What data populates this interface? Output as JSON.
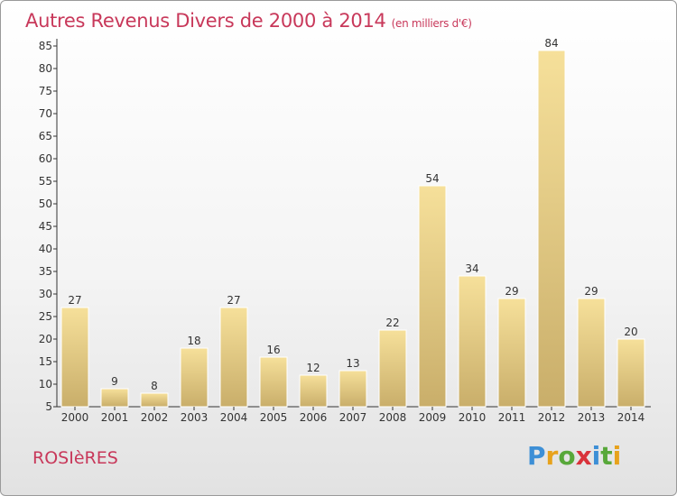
{
  "title": "Autres Revenus Divers de 2000 à 2014",
  "title_unit": "(en milliers d'€)",
  "commune": "ROSIèRES",
  "logo": {
    "letters": [
      "P",
      "r",
      "o",
      "x",
      "i",
      "t",
      "i"
    ],
    "colors": [
      "#3d8fd6",
      "#e7a21c",
      "#58a83a",
      "#d9323a",
      "#3d8fd6",
      "#58a83a",
      "#e7a21c"
    ]
  },
  "colors": {
    "accent": "#c8385a",
    "bar_light": "#f6e09a",
    "bar_dark": "#c9ae6a"
  },
  "chart_data": {
    "type": "bar",
    "title": "Autres Revenus Divers de 2000 à 2014",
    "categories": [
      "2000",
      "2001",
      "2002",
      "2003",
      "2004",
      "2005",
      "2006",
      "2007",
      "2008",
      "2009",
      "2010",
      "2011",
      "2012",
      "2013",
      "2014"
    ],
    "values": [
      27,
      9,
      8,
      18,
      27,
      16,
      12,
      13,
      22,
      54,
      34,
      29,
      84,
      29,
      20
    ],
    "ylim": [
      5,
      85
    ],
    "yticks": [
      5,
      10,
      15,
      20,
      25,
      30,
      35,
      40,
      45,
      50,
      55,
      60,
      65,
      70,
      75,
      80,
      85
    ],
    "grid": false,
    "data_labels": true
  }
}
